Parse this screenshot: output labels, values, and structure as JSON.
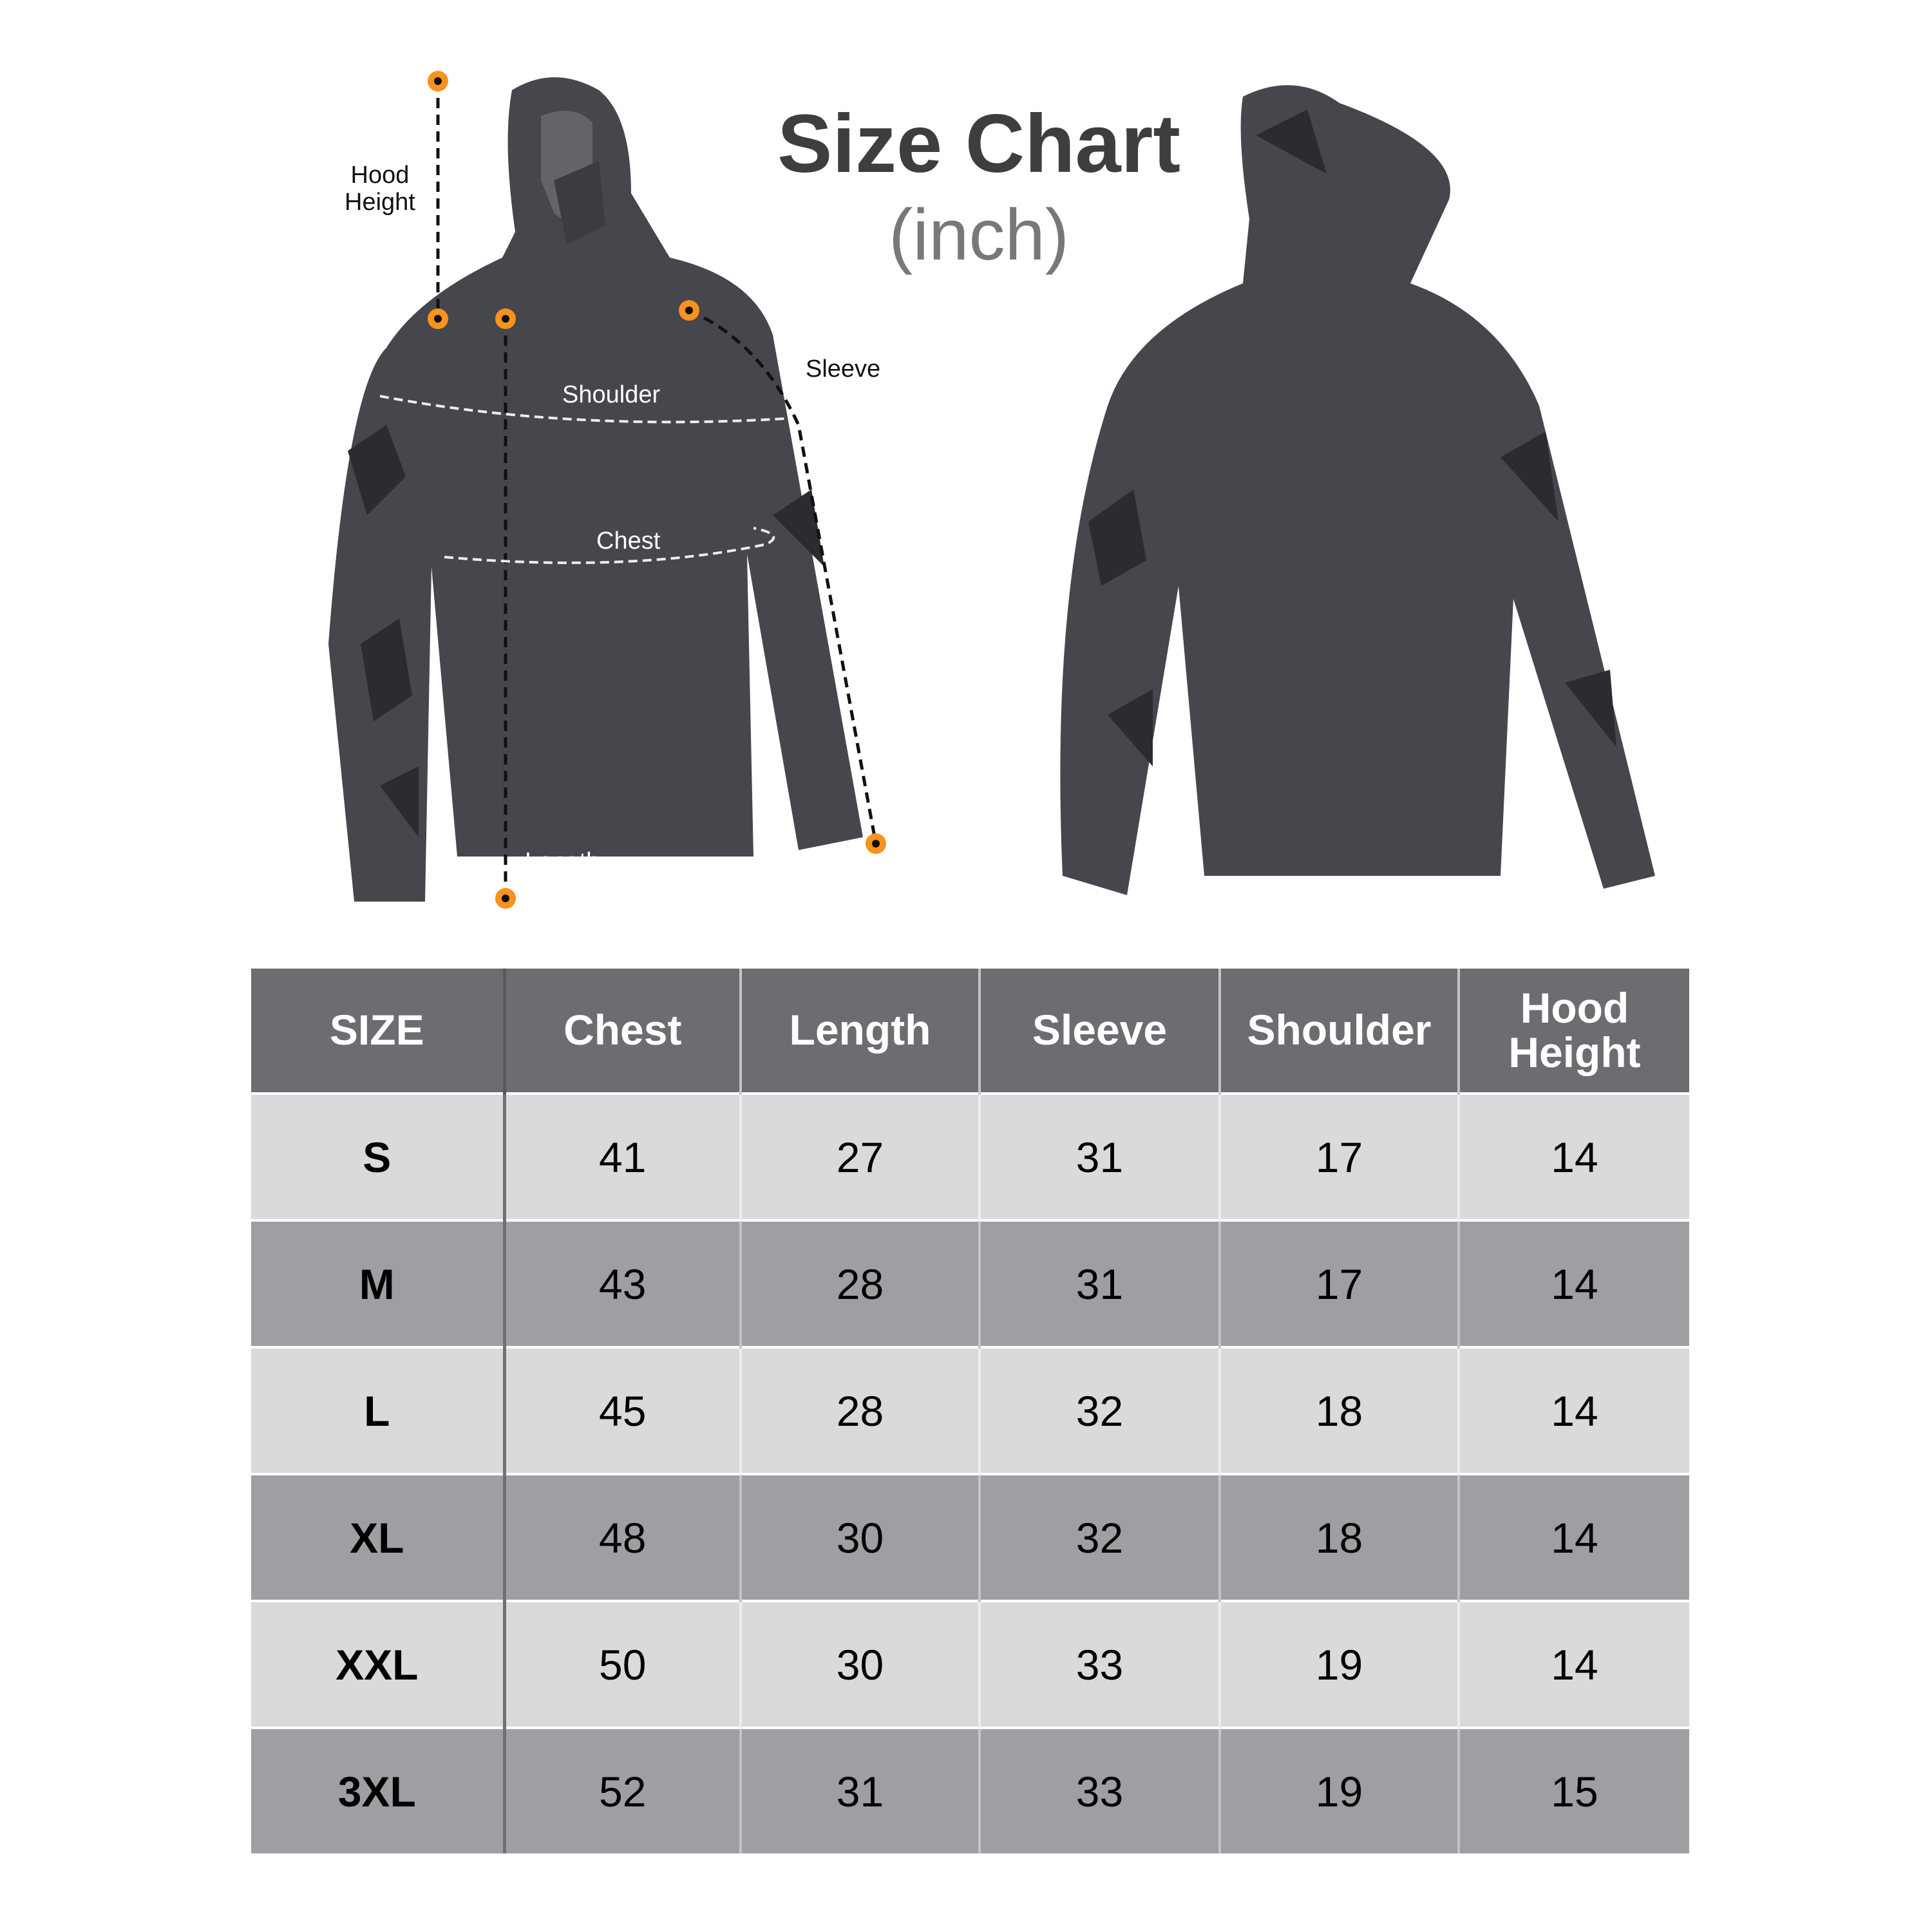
{
  "title": "Size Chart",
  "unit": "(inch)",
  "annotations": {
    "hood_height": "Hood\nHeight",
    "shoulder": "Shoulder",
    "chest": "Chest",
    "sleeve": "Sleeve",
    "length": "Length"
  },
  "colors": {
    "header": "#6b6d71",
    "row_light": "#d9dadc",
    "row_dark": "#9d9fa2",
    "marker": "#f7931e",
    "shirt": "#45474c"
  },
  "table": {
    "headers": [
      "SIZE",
      "Chest",
      "Length",
      "Sleeve",
      "Shoulder",
      "Hood Height"
    ],
    "rows": [
      [
        "S",
        "41",
        "27",
        "31",
        "17",
        "14"
      ],
      [
        "M",
        "43",
        "28",
        "31",
        "17",
        "14"
      ],
      [
        "L",
        "45",
        "28",
        "32",
        "18",
        "14"
      ],
      [
        "XL",
        "48",
        "30",
        "32",
        "18",
        "14"
      ],
      [
        "XXL",
        "50",
        "30",
        "33",
        "19",
        "14"
      ],
      [
        "3XL",
        "52",
        "31",
        "33",
        "19",
        "15"
      ]
    ]
  }
}
